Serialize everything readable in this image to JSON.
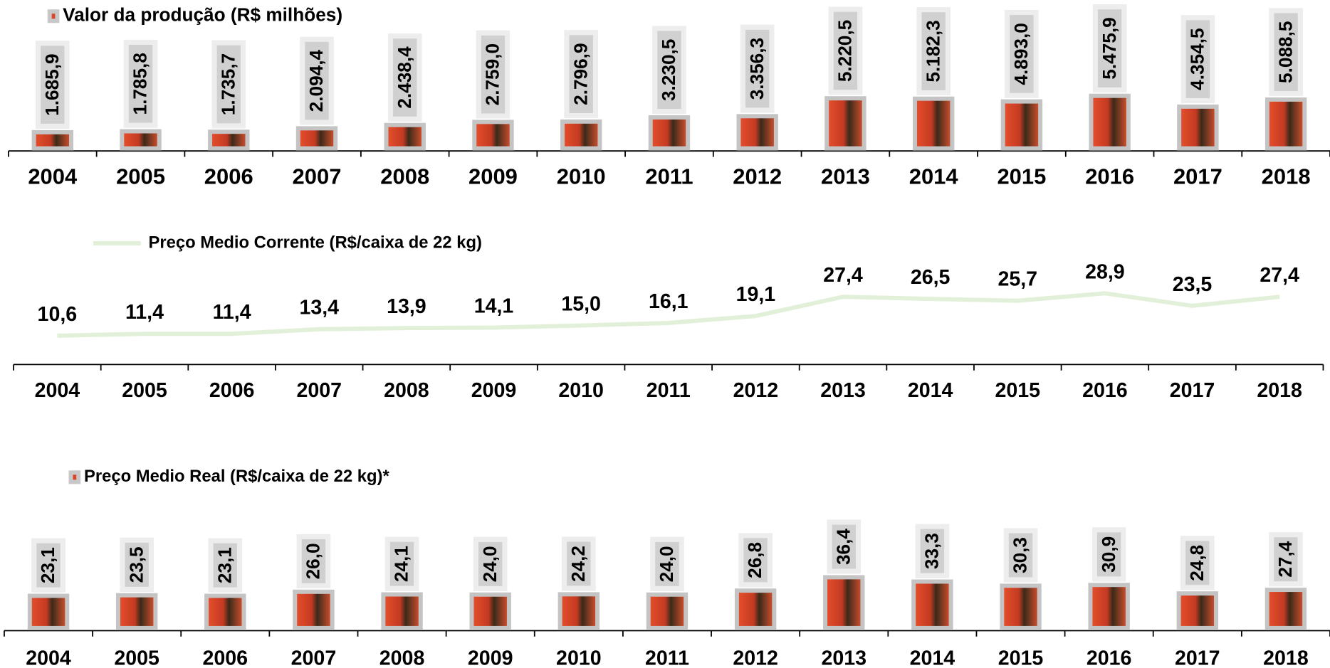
{
  "chart_data": [
    {
      "type": "bar",
      "legend": "Valor da produção (R$ milhões)",
      "color": "#d9452a",
      "categories": [
        "2004",
        "2005",
        "2006",
        "2007",
        "2008",
        "2009",
        "2010",
        "2011",
        "2012",
        "2013",
        "2014",
        "2015",
        "2016",
        "2017",
        "2018"
      ],
      "values": [
        1685.9,
        1785.8,
        1735.7,
        2094.4,
        2438.4,
        2759.0,
        2796.9,
        3230.5,
        3356.3,
        5220.5,
        5182.3,
        4893.0,
        5475.9,
        4354.5,
        5088.5
      ],
      "value_labels": [
        "1.685,9",
        "1.785,8",
        "1.735,7",
        "2.094,4",
        "2.438,4",
        "2.759,0",
        "2.796,9",
        "3.230,5",
        "3.356,3",
        "5.220,5",
        "5.182,3",
        "4.893,0",
        "5.475,9",
        "4.354,5",
        "5.088,5"
      ]
    },
    {
      "type": "line",
      "legend": "Preço Medio Corrente (R$/caixa de 22 kg)",
      "color": "#e2f0d9",
      "categories": [
        "2004",
        "2005",
        "2006",
        "2007",
        "2008",
        "2009",
        "2010",
        "2011",
        "2012",
        "2013",
        "2014",
        "2015",
        "2016",
        "2017",
        "2018"
      ],
      "values": [
        10.6,
        11.4,
        11.4,
        13.4,
        13.9,
        14.1,
        15.0,
        16.1,
        19.1,
        27.4,
        26.5,
        25.7,
        28.9,
        23.5,
        27.4
      ],
      "value_labels": [
        "10,6",
        "11,4",
        "11,4",
        "13,4",
        "13,9",
        "14,1",
        "15,0",
        "16,1",
        "19,1",
        "27,4",
        "26,5",
        "25,7",
        "28,9",
        "23,5",
        "27,4"
      ]
    },
    {
      "type": "bar",
      "legend": "Preço Medio Real (R$/caixa de 22 kg)*",
      "color": "#d9452a",
      "categories": [
        "2004",
        "2005",
        "2006",
        "2007",
        "2008",
        "2009",
        "2010",
        "2011",
        "2012",
        "2013",
        "2014",
        "2015",
        "2016",
        "2017",
        "2018"
      ],
      "values": [
        23.1,
        23.5,
        23.1,
        26.0,
        24.1,
        24.0,
        24.2,
        24.0,
        26.8,
        36.4,
        33.3,
        30.3,
        30.9,
        24.8,
        27.4
      ],
      "value_labels": [
        "23,1",
        "23,5",
        "23,1",
        "26,0",
        "24,1",
        "24,0",
        "24,2",
        "24,0",
        "26,8",
        "36,4",
        "33,3",
        "30,3",
        "30,9",
        "24,8",
        "27,4"
      ]
    }
  ]
}
